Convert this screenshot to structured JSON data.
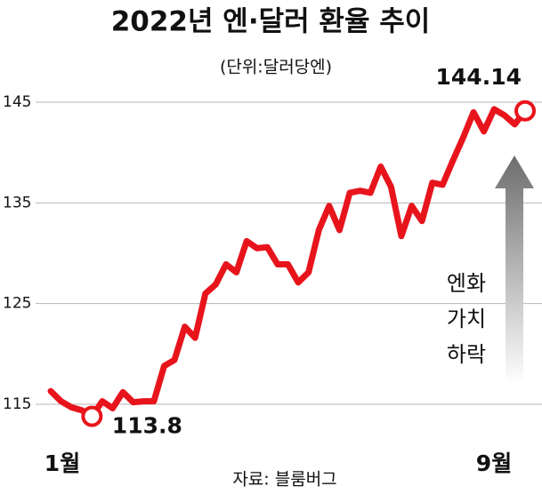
{
  "chart_data": {
    "type": "line",
    "title": "2022년 엔·달러 환율 추이",
    "subtitle": "(단위:달러당엔)",
    "source": "자료: 블룸버그",
    "categories": [
      "1월",
      null,
      null,
      null,
      null,
      null,
      null,
      null,
      null,
      null,
      null,
      null,
      null,
      null,
      null,
      null,
      null,
      null,
      null,
      null,
      null,
      null,
      null,
      null,
      null,
      null,
      null,
      null,
      null,
      null,
      null,
      null,
      null,
      null,
      null,
      null,
      null,
      null,
      null,
      null,
      null,
      null,
      null,
      null,
      null,
      null,
      "9월"
    ],
    "values": [
      116.3,
      115.3,
      114.7,
      114.4,
      113.8,
      115.3,
      114.6,
      116.2,
      115.2,
      115.3,
      115.3,
      118.8,
      119.4,
      122.7,
      121.6,
      126.0,
      126.9,
      128.9,
      128.1,
      131.2,
      130.5,
      130.6,
      128.9,
      128.9,
      127.1,
      128.1,
      132.3,
      134.7,
      132.3,
      136.0,
      136.2,
      136.0,
      138.6,
      136.6,
      131.7,
      134.7,
      133.2,
      137.0,
      136.8,
      139.2,
      141.5,
      144.0,
      142.1,
      144.3,
      143.7,
      142.8,
      144.14
    ],
    "value_labels": [
      null,
      null,
      null,
      null,
      "113.8",
      null,
      null,
      null,
      null,
      null,
      null,
      null,
      null,
      null,
      null,
      null,
      null,
      null,
      null,
      null,
      null,
      null,
      null,
      null,
      null,
      null,
      null,
      null,
      null,
      null,
      null,
      null,
      null,
      null,
      null,
      null,
      null,
      null,
      null,
      null,
      null,
      null,
      null,
      null,
      null,
      null,
      "144.14"
    ],
    "color": "#e8141c",
    "ylim": [
      112,
      147
    ],
    "yticks": [
      115,
      125,
      135,
      145
    ],
    "grid": true,
    "annotation": [
      "엔화",
      "가치",
      "하락"
    ]
  }
}
